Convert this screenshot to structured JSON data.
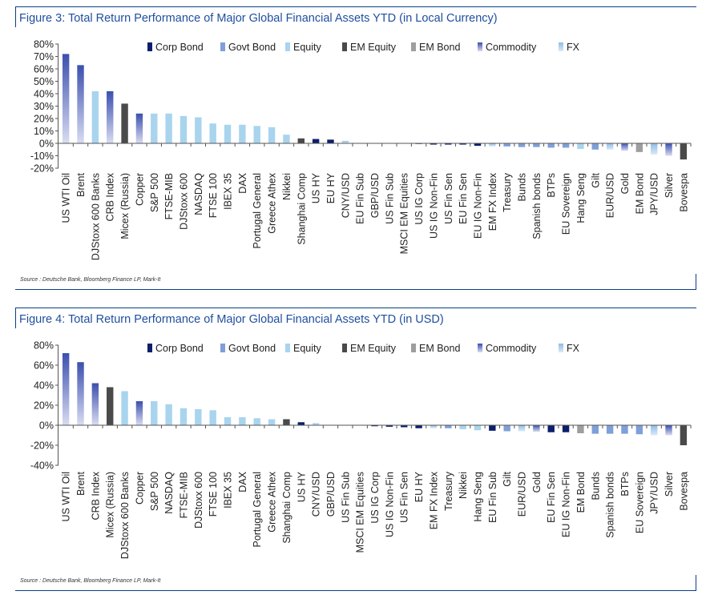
{
  "colors": {
    "Corp Bond": "#0b1f6e",
    "Govt Bond": "#7f9fd8",
    "Equity": "#a9d4ee",
    "EM Equity": "#4a4a4a",
    "EM Bond": "#9e9e9e",
    "Commodity": "#3b4fae",
    "FX": "#8fbde6",
    "frame": "#0a3f86",
    "title": "#1f4e9e"
  },
  "chart_data": [
    {
      "type": "bar",
      "title": "Figure 3: Total Return Performance of Major Global Financial Assets YTD (in Local Currency)",
      "source": "Source : Deutsche Bank, Bloomberg Finance LP, Mark-It",
      "ylim": [
        -20,
        80
      ],
      "yticks": [
        -20,
        -10,
        0,
        10,
        20,
        30,
        40,
        50,
        60,
        70,
        80
      ],
      "ytick_labels": [
        "-20%",
        "-10%",
        "0%",
        "10%",
        "20%",
        "30%",
        "40%",
        "50%",
        "60%",
        "70%",
        "80%"
      ],
      "legend": [
        "Corp Bond",
        "Govt Bond",
        "Equity",
        "EM Equity",
        "EM Bond",
        "Commodity",
        "FX"
      ],
      "legend_position": "top",
      "grid": false,
      "categories": [
        "US WTI Oil",
        "Brent",
        "DJStoxx 600 Banks",
        "CRB Index",
        "Micex (Russia)",
        "Copper",
        "S&P 500",
        "FTSE-MIB",
        "DJStoxx 600",
        "NASDAQ",
        "FTSE 100",
        "IBEX 35",
        "DAX",
        "Portugal General",
        "Greece Athex",
        "Nikkei",
        "Shanghai Comp",
        "US HY",
        "EU HY",
        "CNY/USD",
        "EU Fin Sub",
        "GBP/USD",
        "US Fin Sub",
        "MSCI EM Equities",
        "US IG Corp",
        "US IG Non-Fin",
        "US Fin Sen",
        "EU Fin Sen",
        "EU IG Non-Fin",
        "EM FX Index",
        "Treasury",
        "Bunds",
        "Spanish bonds",
        "BTPs",
        "EU Sovereign",
        "Hang Seng",
        "Gilt",
        "EUR/USD",
        "Gold",
        "EM Bond",
        "JPY/USD",
        "Silver",
        "Bovespa"
      ],
      "values": [
        72,
        63,
        42,
        42,
        32,
        24,
        24,
        24,
        22,
        21,
        16,
        15,
        15,
        14,
        13,
        7,
        4,
        3.5,
        3,
        2,
        0,
        0,
        0,
        0,
        -0.5,
        -1,
        -1,
        -1,
        -2,
        -2.5,
        -2.5,
        -3,
        -3,
        -3.5,
        -3.5,
        -4.5,
        -5,
        -5,
        -6,
        -7,
        -9,
        -10,
        -13
      ],
      "groups": [
        "Commodity",
        "Commodity",
        "Equity",
        "Commodity",
        "EM Equity",
        "Commodity",
        "Equity",
        "Equity",
        "Equity",
        "Equity",
        "Equity",
        "Equity",
        "Equity",
        "Equity",
        "Equity",
        "Equity",
        "EM Equity",
        "Corp Bond",
        "Corp Bond",
        "FX",
        "Corp Bond",
        "FX",
        "Corp Bond",
        "EM Equity",
        "Corp Bond",
        "Corp Bond",
        "Corp Bond",
        "Corp Bond",
        "Corp Bond",
        "FX",
        "Govt Bond",
        "Govt Bond",
        "Govt Bond",
        "Govt Bond",
        "Govt Bond",
        "Equity",
        "Govt Bond",
        "FX",
        "Commodity",
        "EM Bond",
        "FX",
        "Commodity",
        "EM Equity"
      ]
    },
    {
      "type": "bar",
      "title": "Figure 4: Total Return Performance of Major Global Financial Assets YTD (in USD)",
      "source": "Source : Deutsche Bank, Bloomberg Finance LP, Mark-It",
      "ylim": [
        -40,
        80
      ],
      "yticks": [
        -40,
        -20,
        0,
        20,
        40,
        60,
        80
      ],
      "ytick_labels": [
        "-40%",
        "-20%",
        "0%",
        "20%",
        "40%",
        "60%",
        "80%"
      ],
      "legend": [
        "Corp Bond",
        "Govt Bond",
        "Equity",
        "EM Equity",
        "EM Bond",
        "Commodity",
        "FX"
      ],
      "legend_position": "top",
      "grid": false,
      "categories": [
        "US WTI Oil",
        "Brent",
        "CRB Index",
        "Micex (Russia)",
        "DJStoxx 600 Banks",
        "Copper",
        "S&P 500",
        "NASDAQ",
        "FTSE-MIB",
        "DJStoxx 600",
        "FTSE 100",
        "IBEX 35",
        "DAX",
        "Portugal General",
        "Greece Athex",
        "Shanghai Comp",
        "US HY",
        "CNY/USD",
        "GBP/USD",
        "US Fin Sub",
        "MSCI EM Equities",
        "US IG Corp",
        "US IG Non-Fin",
        "US Fin Sen",
        "EU HY",
        "EM FX Index",
        "Treasury",
        "Nikkei",
        "Hang Seng",
        "EU Fin Sub",
        "Gilt",
        "EUR/USD",
        "Gold",
        "EU Fin Sen",
        "EU IG Non-Fin",
        "EM Bond",
        "Bunds",
        "Spanish bonds",
        "BTPs",
        "EU Sovereign",
        "JPY/USD",
        "Silver",
        "Bovespa"
      ],
      "values": [
        72,
        63,
        42,
        38,
        34,
        24,
        24,
        21,
        17,
        16,
        15,
        8,
        8,
        7,
        6,
        6,
        3,
        2,
        0,
        0,
        0,
        -1,
        -1.5,
        -2,
        -3,
        -3,
        -3,
        -4,
        -5,
        -5.5,
        -6,
        -6,
        -6.5,
        -7,
        -7,
        -8,
        -8.5,
        -8.5,
        -8.5,
        -9,
        -10,
        -10,
        -20
      ],
      "groups": [
        "Commodity",
        "Commodity",
        "Commodity",
        "EM Equity",
        "Equity",
        "Commodity",
        "Equity",
        "Equity",
        "Equity",
        "Equity",
        "Equity",
        "Equity",
        "Equity",
        "Equity",
        "Equity",
        "EM Equity",
        "Corp Bond",
        "FX",
        "FX",
        "Corp Bond",
        "EM Equity",
        "Corp Bond",
        "Corp Bond",
        "Corp Bond",
        "Corp Bond",
        "FX",
        "Govt Bond",
        "Equity",
        "Equity",
        "Corp Bond",
        "Govt Bond",
        "FX",
        "Commodity",
        "Corp Bond",
        "Corp Bond",
        "EM Bond",
        "Govt Bond",
        "Govt Bond",
        "Govt Bond",
        "Govt Bond",
        "FX",
        "Commodity",
        "EM Equity"
      ]
    }
  ]
}
